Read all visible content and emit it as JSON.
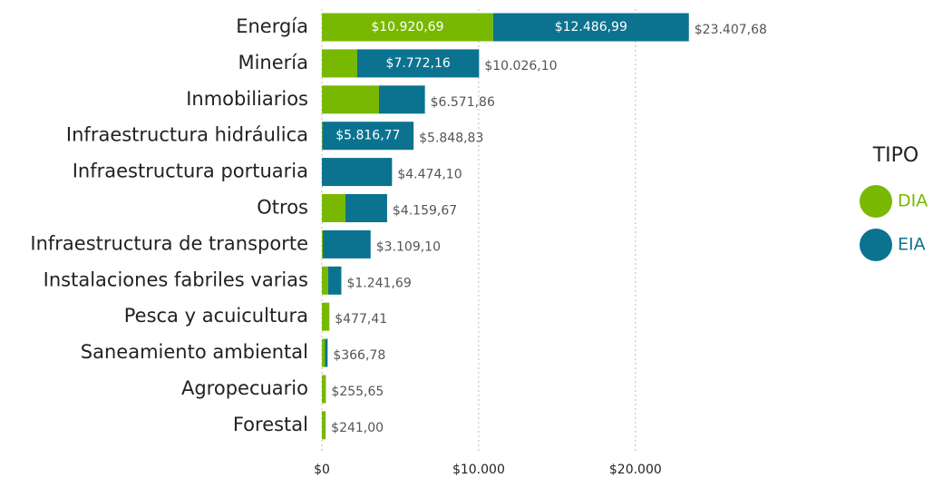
{
  "chart_data": {
    "type": "stacked-barh",
    "categories": [
      "Energía",
      "Minería",
      "Inmobiliarios",
      "Infraestructura hidráulica",
      "Infraestructura portuaria",
      "Otros",
      "Infraestructura de transporte",
      "Instalaciones fabriles varias",
      "Pesca y acuicultura",
      "Saneamiento ambiental",
      "Agropecuario",
      "Forestal"
    ],
    "series": [
      {
        "name": "DIA",
        "color": "#78b800",
        "values": [
          10920.69,
          2253.94,
          3640,
          32.06,
          0,
          1500,
          60,
          400,
          477.41,
          200,
          255.65,
          241.0
        ],
        "value_labels": [
          "$10.920,69",
          null,
          null,
          null,
          null,
          null,
          null,
          null,
          null,
          null,
          null,
          null
        ]
      },
      {
        "name": "EIA",
        "color": "#0b7390",
        "values": [
          12486.99,
          7772.16,
          2931.86,
          5816.77,
          4474.1,
          2659.67,
          3049.1,
          841.69,
          0,
          166.78,
          0,
          0
        ],
        "value_labels": [
          "$12.486,99",
          "$7.772,16",
          null,
          "$5.816,77",
          null,
          null,
          null,
          null,
          null,
          null,
          null,
          null
        ]
      }
    ],
    "totals": [
      23407.68,
      10026.1,
      6571.86,
      5848.83,
      4474.1,
      4159.67,
      3109.1,
      1241.69,
      477.41,
      366.78,
      255.65,
      241.0
    ],
    "total_labels": [
      "$23.407,68",
      "$10.026,10",
      "$6.571,86",
      "$5.848,83",
      "$4.474,10",
      "$4.159,67",
      "$3.109,10",
      "$1.241,69",
      "$477,41",
      "$366,78",
      "$255,65",
      "$241,00"
    ],
    "xlim": [
      0,
      24000
    ],
    "xticks": [
      {
        "value": 0,
        "label": "$0"
      },
      {
        "value": 10000,
        "label": "$10.000"
      },
      {
        "value": 20000,
        "label": "$20.000"
      }
    ],
    "grid": true,
    "legend_title": "TIPO",
    "legend": "right"
  }
}
